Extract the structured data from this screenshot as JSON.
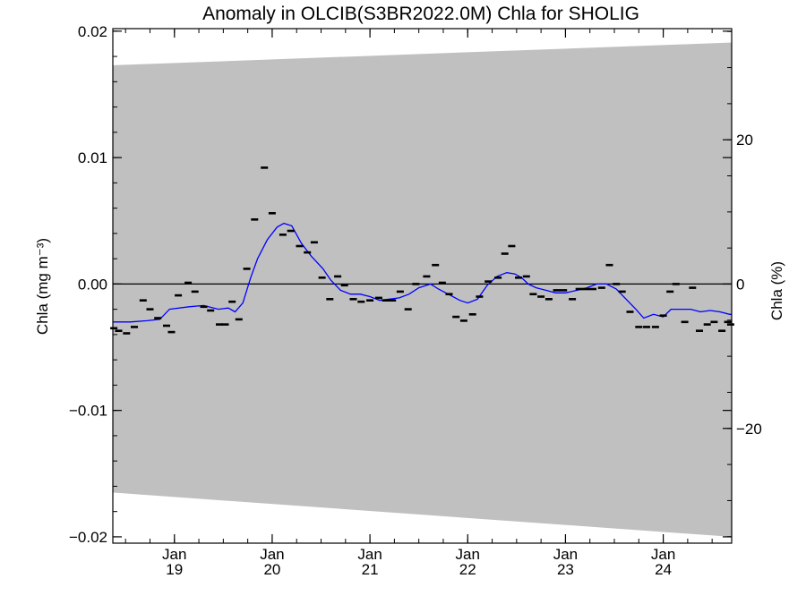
{
  "chart_data": {
    "type": "scatter",
    "title": "Anomaly in OLCIB(S3BR2022.0M) Chla for SHOLIG",
    "ylabel_left": "Chla (mg m⁻³)",
    "ylabel_right": "Chla (%)",
    "xlim": [
      2018.37,
      2024.7
    ],
    "ylim": [
      -0.0205,
      0.0202
    ],
    "y2lim": [
      -35.9,
      35.4
    ],
    "y_ticks": [
      {
        "value": 0.02,
        "label": "0.02"
      },
      {
        "value": 0.01,
        "label": "0.01"
      },
      {
        "value": 0.0,
        "label": "0.00"
      },
      {
        "value": -0.01,
        "label": "−0.01"
      },
      {
        "value": -0.02,
        "label": "−0.02"
      }
    ],
    "y2_ticks": [
      {
        "value": 20,
        "label": "20"
      },
      {
        "value": 0,
        "label": "0"
      },
      {
        "value": -20,
        "label": "−20"
      }
    ],
    "x_ticks": [
      {
        "value": 2019.0,
        "month": "Jan",
        "year": "19"
      },
      {
        "value": 2020.0,
        "month": "Jan",
        "year": "20"
      },
      {
        "value": 2021.0,
        "month": "Jan",
        "year": "21"
      },
      {
        "value": 2022.0,
        "month": "Jan",
        "year": "22"
      },
      {
        "value": 2023.0,
        "month": "Jan",
        "year": "23"
      },
      {
        "value": 2024.0,
        "month": "Jan",
        "year": "24"
      }
    ],
    "band": {
      "x": [
        2018.37,
        2024.7
      ],
      "upper": [
        0.0173,
        0.0191
      ],
      "lower": [
        -0.0165,
        -0.02
      ],
      "color": "#c0c0c0"
    },
    "zero_line": 0.0,
    "monthly_anomalies": {
      "name": "",
      "color": "#000000",
      "x": [
        2018.38,
        2018.43,
        2018.51,
        2018.59,
        2018.68,
        2018.75,
        2018.83,
        2018.92,
        2018.97,
        2019.04,
        2019.14,
        2019.21,
        2019.3,
        2019.37,
        2019.46,
        2019.52,
        2019.59,
        2019.66,
        2019.74,
        2019.82,
        2019.92,
        2020.0,
        2020.11,
        2020.19,
        2020.28,
        2020.36,
        2020.43,
        2020.51,
        2020.59,
        2020.67,
        2020.74,
        2020.83,
        2020.91,
        2021.0,
        2021.09,
        2021.16,
        2021.23,
        2021.31,
        2021.39,
        2021.47,
        2021.58,
        2021.67,
        2021.74,
        2021.81,
        2021.88,
        2021.96,
        2022.05,
        2022.12,
        2022.21,
        2022.31,
        2022.38,
        2022.45,
        2022.52,
        2022.6,
        2022.67,
        2022.75,
        2022.83,
        2022.91,
        2022.98,
        2023.07,
        2023.14,
        2023.21,
        2023.28,
        2023.37,
        2023.45,
        2023.52,
        2023.58,
        2023.66,
        2023.75,
        2023.83,
        2023.92,
        2024.0,
        2024.07,
        2024.13,
        2024.22,
        2024.3,
        2024.37,
        2024.45,
        2024.52,
        2024.6,
        2024.66,
        2024.69
      ],
      "y": [
        -0.0035,
        -0.0037,
        -0.0039,
        -0.0034,
        -0.0013,
        -0.002,
        -0.0027,
        -0.0033,
        -0.0038,
        -0.0009,
        0.0001,
        -0.0006,
        -0.0018,
        -0.0021,
        -0.0032,
        -0.0032,
        -0.0014,
        -0.0028,
        0.0012,
        0.0051,
        0.0092,
        0.0056,
        0.0039,
        0.0042,
        0.003,
        0.0025,
        0.0033,
        0.0005,
        -0.0012,
        0.0006,
        -0.0001,
        -0.0012,
        -0.0014,
        -0.0013,
        -0.0011,
        -0.0013,
        -0.0013,
        -0.0006,
        -0.002,
        0.0,
        0.0006,
        0.0015,
        0.0001,
        -0.0008,
        -0.0026,
        -0.0029,
        -0.0024,
        -0.001,
        0.0002,
        0.0005,
        0.0024,
        0.003,
        0.0005,
        0.0006,
        -0.0008,
        -0.001,
        -0.0012,
        -0.0005,
        -0.0005,
        -0.0012,
        -0.0004,
        -0.0004,
        -0.0004,
        -0.0003,
        0.0015,
        0.0,
        -0.0006,
        -0.0022,
        -0.0034,
        -0.0034,
        -0.0034,
        -0.0025,
        -0.0006,
        0.0,
        -0.003,
        -0.0003,
        -0.0037,
        -0.0032,
        -0.003,
        -0.0037,
        -0.003,
        -0.0032
      ]
    },
    "smoothed": {
      "name": "",
      "color": "#0000ff",
      "x": [
        2018.37,
        2018.55,
        2018.72,
        2018.85,
        2018.95,
        2019.15,
        2019.3,
        2019.45,
        2019.55,
        2019.62,
        2019.7,
        2019.78,
        2019.85,
        2019.95,
        2020.05,
        2020.12,
        2020.2,
        2020.3,
        2020.4,
        2020.52,
        2020.6,
        2020.7,
        2020.8,
        2020.9,
        2021.0,
        2021.1,
        2021.2,
        2021.3,
        2021.4,
        2021.5,
        2021.62,
        2021.7,
        2021.8,
        2021.92,
        2022.0,
        2022.1,
        2022.2,
        2022.3,
        2022.4,
        2022.48,
        2022.55,
        2022.62,
        2022.7,
        2022.8,
        2022.9,
        2023.0,
        2023.12,
        2023.22,
        2023.32,
        2023.42,
        2023.52,
        2023.62,
        2023.72,
        2023.8,
        2023.9,
        2024.0,
        2024.08,
        2024.18,
        2024.28,
        2024.38,
        2024.48,
        2024.58,
        2024.68,
        2024.7
      ],
      "y": [
        -0.003,
        -0.003,
        -0.0029,
        -0.0028,
        -0.002,
        -0.0018,
        -0.0017,
        -0.002,
        -0.0019,
        -0.0022,
        -0.0015,
        0.0005,
        0.002,
        0.0035,
        0.0045,
        0.0048,
        0.0046,
        0.0032,
        0.0022,
        0.0012,
        0.0003,
        -0.0005,
        -0.0008,
        -0.0008,
        -0.001,
        -0.0013,
        -0.0012,
        -0.0011,
        -0.0008,
        -0.0003,
        0.0,
        -0.0004,
        -0.0008,
        -0.0013,
        -0.0015,
        -0.0012,
        -0.0001,
        0.0006,
        0.0009,
        0.0008,
        0.0005,
        0.0,
        -0.0003,
        -0.0005,
        -0.0007,
        -0.0007,
        -0.0005,
        -0.0003,
        0.0,
        0.0,
        -0.0004,
        -0.0012,
        -0.002,
        -0.0027,
        -0.0024,
        -0.0026,
        -0.002,
        -0.002,
        -0.002,
        -0.0022,
        -0.0021,
        -0.0022,
        -0.0024,
        -0.0024
      ]
    }
  }
}
